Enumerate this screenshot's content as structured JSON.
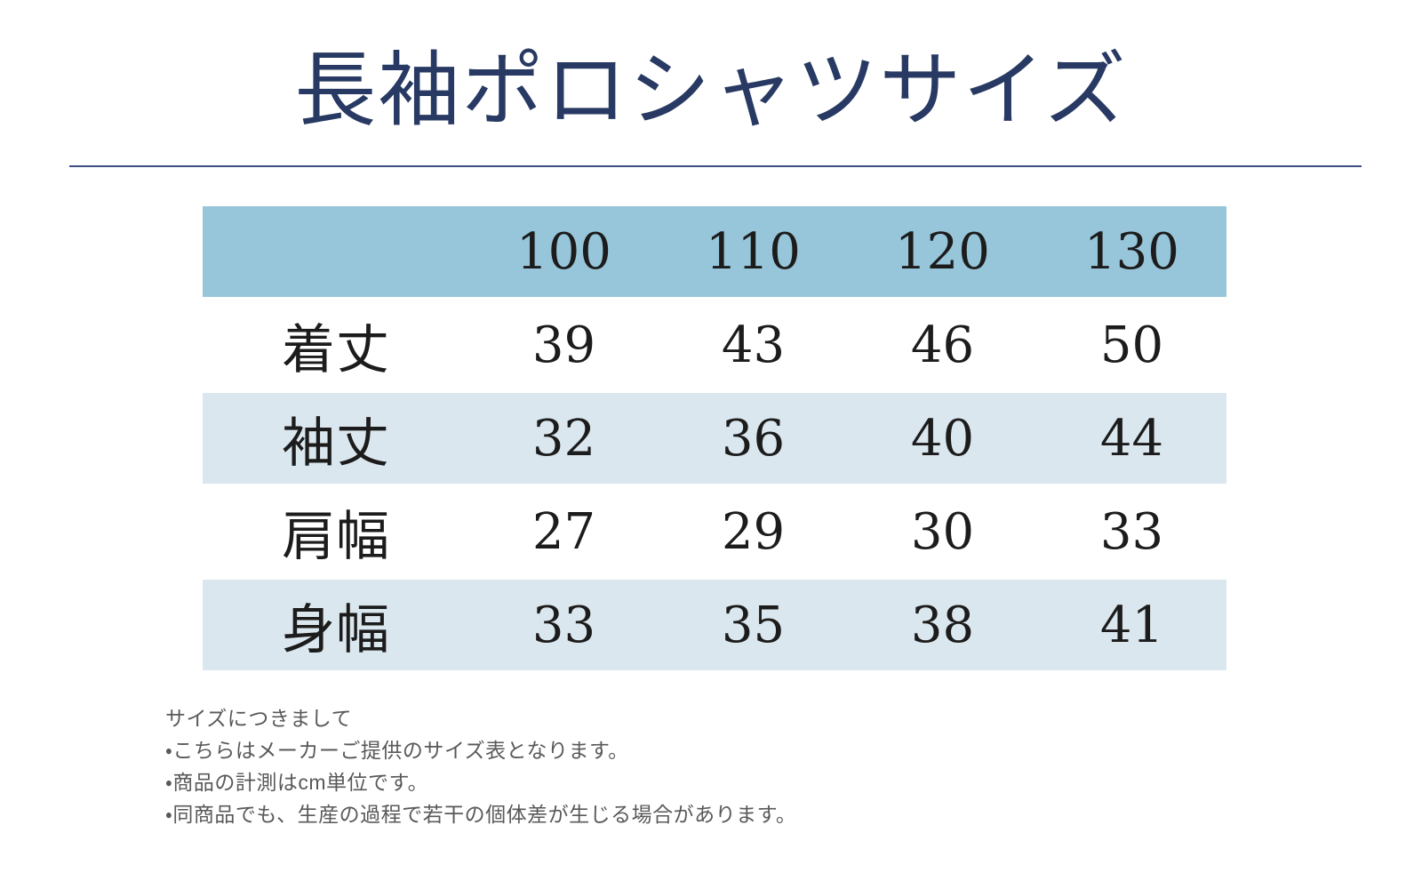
{
  "title": "長袖ポロシャツサイズ",
  "colors": {
    "title_navy": "#283a63",
    "rule_navy": "#3a4f85",
    "header_blue": "#97c5da",
    "stripe_blue": "#dbe7ee",
    "cell_text": "#1c1c1c",
    "note_gray": "#595959"
  },
  "chart_data": {
    "type": "table",
    "title": "長袖ポロシャツサイズ",
    "unit": "cm",
    "columns": [
      "100",
      "110",
      "120",
      "130"
    ],
    "rows": [
      {
        "label": "着丈",
        "values": [
          "39",
          "43",
          "46",
          "50"
        ]
      },
      {
        "label": "袖丈",
        "values": [
          "32",
          "36",
          "40",
          "44"
        ]
      },
      {
        "label": "肩幅",
        "values": [
          "27",
          "29",
          "30",
          "33"
        ]
      },
      {
        "label": "身幅",
        "values": [
          "33",
          "35",
          "38",
          "41"
        ]
      }
    ]
  },
  "notes": {
    "heading": "サイズにつきまして",
    "items": [
      "・こちらはメーカーご提供のサイズ表となります。",
      "・商品の計測はcm単位です。",
      "・同商品でも、生産の過程で若干の個体差が生じる場合があります。"
    ]
  }
}
